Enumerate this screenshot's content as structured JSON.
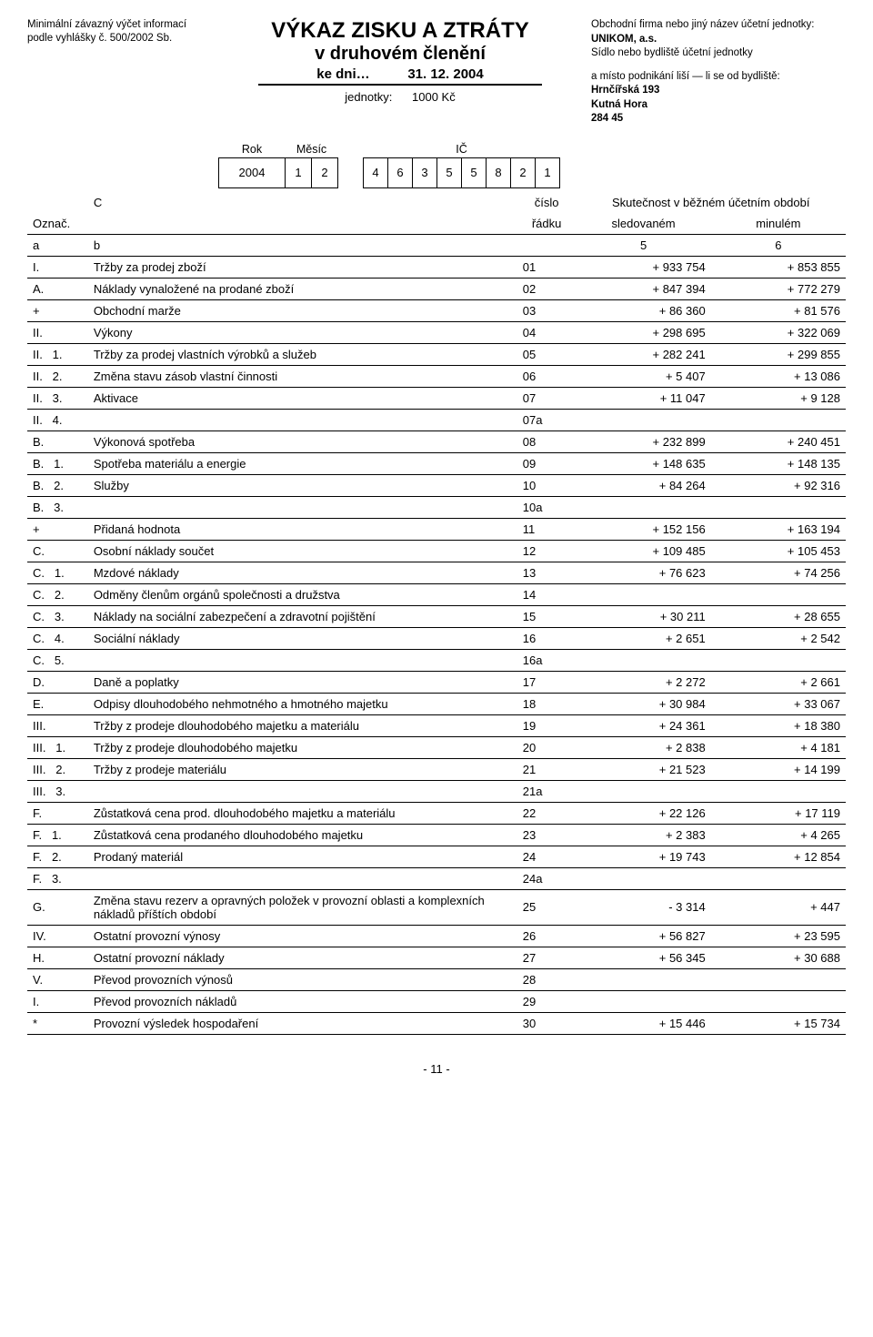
{
  "top_note_line1": "Minimální závazný výčet informací",
  "top_note_line2": "podle vyhlášky č. 500/2002 Sb.",
  "title_main": "VÝKAZ ZISKU A ZTRÁTY",
  "title_sub": "v druhovém členění",
  "title_date_prefix": "ke dni…",
  "title_date": "31. 12.   2004",
  "units_label": "jednotky:",
  "units_value": "1000 Kč",
  "right_info": {
    "line1": "Obchodní firma nebo jiný název účetní jednotky:",
    "company": "UNIKOM, a.s.",
    "line2": "Sídlo nebo bydliště účetní jednotky",
    "line3": "a místo podnikání liší — li se od bydliště:",
    "addr1": "Hrnčířská 193",
    "addr2": "Kutná Hora",
    "addr3": "284 45"
  },
  "id_labels": {
    "rok": "Rok",
    "mesic": "Měsíc",
    "ic": "IČ"
  },
  "id_values": {
    "rok": "2004",
    "m1": "1",
    "m2": "2",
    "ic": [
      "4",
      "6",
      "3",
      "5",
      "5",
      "8",
      "2",
      "1"
    ]
  },
  "table_header": {
    "oznac": "Označ.",
    "c": "C",
    "cislo": "číslo",
    "radku": "řádku",
    "skut": "Skutečnost v běžném účetním období",
    "sledovanem": "sledovaném",
    "minulem": "minulém",
    "a": "a",
    "b": "b",
    "c5": "5",
    "c6": "6"
  },
  "rows": [
    {
      "oz": "I.",
      "name": "Tržby za prodej zboží",
      "rad": "01",
      "v1": "+ 933 754",
      "v2": "+ 853 855"
    },
    {
      "oz": "A.",
      "name": "Náklady vynaložené na prodané zboží",
      "rad": "02",
      "v1": "+ 847 394",
      "v2": "+ 772 279"
    },
    {
      "oz": "+",
      "name": "Obchodní marže",
      "rad": "03",
      "v1": "+ 86 360",
      "v2": "+ 81 576"
    },
    {
      "oz": "II.",
      "name": "Výkony",
      "rad": "04",
      "v1": "+ 298 695",
      "v2": "+ 322 069"
    },
    {
      "oz": "II.   1.",
      "name": "Tržby za prodej vlastních výrobků a služeb",
      "rad": "05",
      "v1": "+ 282 241",
      "v2": "+ 299 855"
    },
    {
      "oz": "II.   2.",
      "name": "Změna stavu zásob vlastní činnosti",
      "rad": "06",
      "v1": "+ 5 407",
      "v2": "+ 13 086"
    },
    {
      "oz": "II.   3.",
      "name": "Aktivace",
      "rad": "07",
      "v1": "+ 11 047",
      "v2": "+ 9 128"
    },
    {
      "oz": "II.   4.",
      "name": "",
      "rad": "07a",
      "v1": "",
      "v2": ""
    },
    {
      "oz": "B.",
      "name": "Výkonová spotřeba",
      "rad": "08",
      "v1": "+ 232 899",
      "v2": "+ 240 451"
    },
    {
      "oz": "B.   1.",
      "name": "Spotřeba materiálu a energie",
      "rad": "09",
      "v1": "+ 148 635",
      "v2": "+ 148 135"
    },
    {
      "oz": "B.   2.",
      "name": "Služby",
      "rad": "10",
      "v1": "+ 84 264",
      "v2": "+ 92 316"
    },
    {
      "oz": "B.   3.",
      "name": "",
      "rad": "10a",
      "v1": "",
      "v2": ""
    },
    {
      "oz": "+",
      "name": "Přidaná hodnota",
      "rad": "11",
      "v1": "+ 152 156",
      "v2": "+ 163 194"
    },
    {
      "oz": "C.",
      "name": "Osobní náklady součet",
      "rad": "12",
      "v1": "+ 109 485",
      "v2": "+ 105 453"
    },
    {
      "oz": "C.   1.",
      "name": "Mzdové náklady",
      "rad": "13",
      "v1": "+ 76 623",
      "v2": "+ 74 256"
    },
    {
      "oz": "C.   2.",
      "name": "Odměny členům orgánů společnosti a družstva",
      "rad": "14",
      "v1": "",
      "v2": ""
    },
    {
      "oz": "C.   3.",
      "name": "Náklady na sociální zabezpečení a zdravotní pojištění",
      "rad": "15",
      "v1": "+ 30 211",
      "v2": "+ 28 655"
    },
    {
      "oz": "C.   4.",
      "name": "Sociální náklady",
      "rad": "16",
      "v1": "+ 2 651",
      "v2": "+ 2 542"
    },
    {
      "oz": "C.   5.",
      "name": "",
      "rad": "16a",
      "v1": "",
      "v2": ""
    },
    {
      "oz": "D.",
      "name": "Daně a poplatky",
      "rad": "17",
      "v1": "+ 2 272",
      "v2": "+ 2 661"
    },
    {
      "oz": "E.",
      "name": "Odpisy dlouhodobého nehmotného a hmotného majetku",
      "rad": "18",
      "v1": "+ 30 984",
      "v2": "+ 33 067"
    },
    {
      "oz": "III.",
      "name": "Tržby z prodeje dlouhodobého majetku a materiálu",
      "rad": "19",
      "v1": "+ 24 361",
      "v2": "+ 18 380"
    },
    {
      "oz": "III.   1.",
      "name": "Tržby z prodeje dlouhodobého majetku",
      "rad": "20",
      "v1": "+ 2 838",
      "v2": "+ 4 181"
    },
    {
      "oz": "III.   2.",
      "name": "Tržby z prodeje materiálu",
      "rad": "21",
      "v1": "+ 21 523",
      "v2": "+ 14 199"
    },
    {
      "oz": "III.   3.",
      "name": "",
      "rad": "21a",
      "v1": "",
      "v2": ""
    },
    {
      "oz": "F.",
      "name": "Zůstatková cena prod. dlouhodobého majetku a materiálu",
      "rad": "22",
      "v1": "+ 22 126",
      "v2": "+ 17 119"
    },
    {
      "oz": "F.   1.",
      "name": "Zůstatková cena prodaného dlouhodobého majetku",
      "rad": "23",
      "v1": "+ 2 383",
      "v2": "+ 4 265"
    },
    {
      "oz": "F.   2.",
      "name": "Prodaný materiál",
      "rad": "24",
      "v1": "+ 19 743",
      "v2": "+ 12 854"
    },
    {
      "oz": "F.   3.",
      "name": "",
      "rad": "24a",
      "v1": "",
      "v2": ""
    },
    {
      "oz": "G.",
      "name": "Změna stavu rezerv a opravných položek v provozní oblasti a komplexních nákladů příštích období",
      "rad": "25",
      "v1": "- 3 314",
      "v2": "+ 447"
    },
    {
      "oz": "IV.",
      "name": "Ostatní provozní výnosy",
      "rad": "26",
      "v1": "+ 56 827",
      "v2": "+ 23 595"
    },
    {
      "oz": "H.",
      "name": "Ostatní provozní náklady",
      "rad": "27",
      "v1": "+ 56 345",
      "v2": "+ 30 688"
    },
    {
      "oz": "V.",
      "name": "Převod provozních výnosů",
      "rad": "28",
      "v1": "",
      "v2": ""
    },
    {
      "oz": "I.",
      "name": "Převod provozních nákladů",
      "rad": "29",
      "v1": "",
      "v2": ""
    },
    {
      "oz": "*",
      "name": "Provozní výsledek hospodaření",
      "rad": "30",
      "v1": "+ 15 446",
      "v2": "+ 15 734"
    }
  ],
  "page_footer": "- 11 -"
}
